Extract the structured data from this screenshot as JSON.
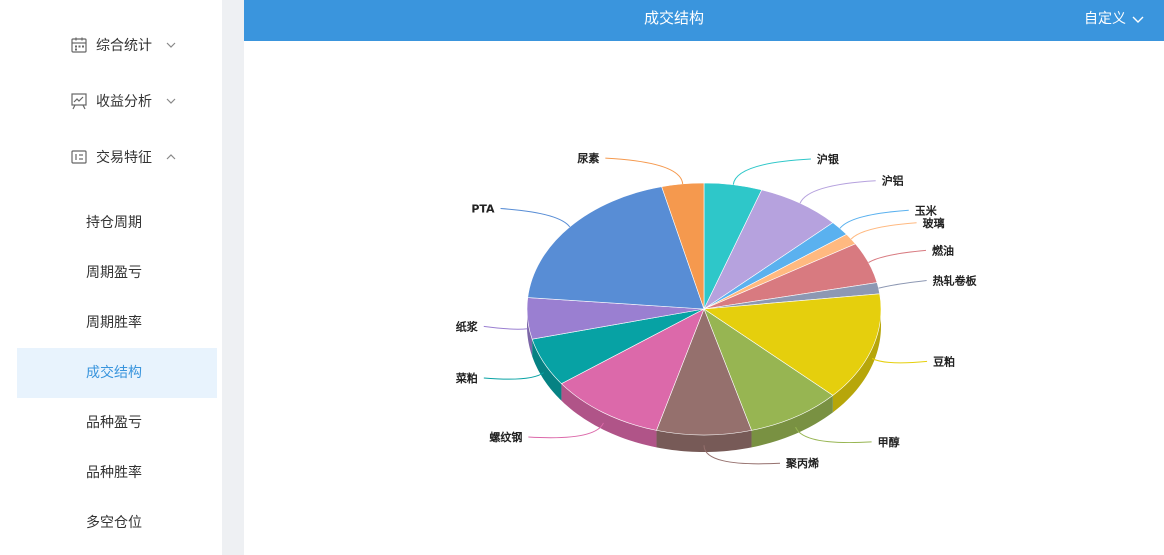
{
  "sidebar": {
    "groups": [
      {
        "label": "综合统计",
        "icon": "calendar-icon",
        "expanded": false
      },
      {
        "label": "收益分析",
        "icon": "presentation-chart-icon",
        "expanded": false
      },
      {
        "label": "交易特征",
        "icon": "panel-icon",
        "expanded": true
      }
    ],
    "items": [
      {
        "label": "持仓周期"
      },
      {
        "label": "周期盈亏"
      },
      {
        "label": "周期胜率"
      },
      {
        "label": "成交结构",
        "active": true
      },
      {
        "label": "品种盈亏"
      },
      {
        "label": "品种胜率"
      },
      {
        "label": "多空仓位"
      }
    ]
  },
  "header": {
    "title": "成交结构",
    "custom_label": "自定义",
    "bg_color": "#3a95dd"
  },
  "chart_data": {
    "type": "pie",
    "style": "3d",
    "categories": [
      "沪银",
      "沪铝",
      "玉米",
      "玻璃",
      "燃油",
      "热轧卷板",
      "豆粕",
      "甲醇",
      "聚丙烯",
      "螺纹钢",
      "菜粕",
      "纸浆",
      "PTA",
      "尿素"
    ],
    "values": [
      5.5,
      8.0,
      2.0,
      1.5,
      5.5,
      1.5,
      14.5,
      9.0,
      9.0,
      11.0,
      6.5,
      5.5,
      20.5,
      4.0
    ],
    "colors": [
      "#2ec7c9",
      "#b6a2de",
      "#5ab1ef",
      "#ffb980",
      "#d87a80",
      "#8d98b3",
      "#e5cf0d",
      "#97b552",
      "#95706d",
      "#dc69aa",
      "#07a2a4",
      "#9a7fd1",
      "#588dd5",
      "#f5994e"
    ]
  }
}
